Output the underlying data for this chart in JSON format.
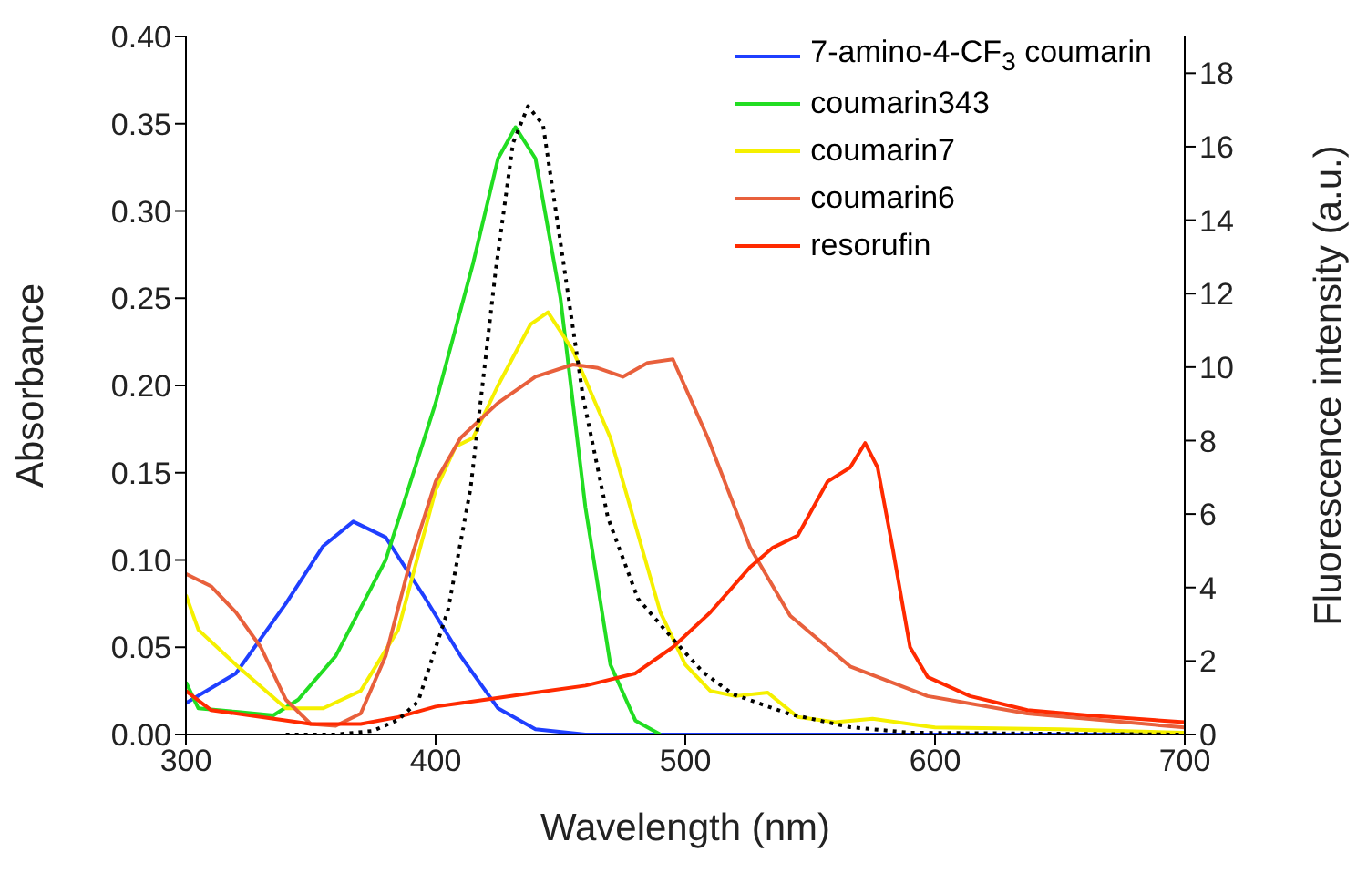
{
  "chart_data": {
    "type": "line",
    "xlabel": "Wavelength (nm)",
    "ylabel": "Absorbance",
    "y2label": "Fluorescence intensity (a.u.)",
    "xlim": [
      300,
      700
    ],
    "xticks": [
      300,
      400,
      500,
      600,
      700
    ],
    "ylim": [
      0,
      0.4
    ],
    "yticks": [
      {
        "value": 0,
        "label": "0.00"
      },
      {
        "value": 0.05,
        "label": "0.05"
      },
      {
        "value": 0.1,
        "label": "0.10"
      },
      {
        "value": 0.15,
        "label": "0.15"
      },
      {
        "value": 0.2,
        "label": "0.20"
      },
      {
        "value": 0.25,
        "label": "0.25"
      },
      {
        "value": 0.3,
        "label": "0.30"
      },
      {
        "value": 0.35,
        "label": "0.35"
      },
      {
        "value": 0.4,
        "label": "0.40"
      }
    ],
    "y2lim": [
      0,
      19
    ],
    "y2ticks": [
      0,
      2,
      4,
      6,
      8,
      10,
      12,
      14,
      16,
      18
    ],
    "grid": false,
    "legend": "top right",
    "marker": "none",
    "series": [
      {
        "name": "7-amino-4-CF$_{3}$ coumarin",
        "color": "#1f3fff",
        "line_style": "solid",
        "x": [
          300,
          320,
          340,
          355,
          367,
          380,
          395,
          410,
          425,
          440,
          460,
          700
        ],
        "values": [
          0.018,
          0.035,
          0.075,
          0.108,
          0.122,
          0.113,
          0.08,
          0.045,
          0.015,
          0.003,
          0,
          0
        ]
      },
      {
        "name": "coumarin343",
        "color": "#22dd22",
        "line_style": "solid",
        "x": [
          300,
          305,
          320,
          335,
          345,
          360,
          380,
          400,
          415,
          425,
          432,
          440,
          450,
          460,
          470,
          480,
          490
        ],
        "values": [
          0.03,
          0.015,
          0.013,
          0.011,
          0.02,
          0.045,
          0.1,
          0.19,
          0.27,
          0.33,
          0.348,
          0.33,
          0.25,
          0.13,
          0.04,
          0.008,
          0
        ]
      },
      {
        "name": "coumarin7",
        "color": "#f5f000",
        "line_style": "solid",
        "x": [
          300,
          305,
          320,
          340,
          355,
          370,
          385,
          400,
          408,
          415,
          425,
          438,
          445,
          455,
          470,
          480,
          490,
          500,
          510,
          520,
          533,
          545,
          560,
          575,
          600,
          650,
          700
        ],
        "values": [
          0.08,
          0.06,
          0.04,
          0.015,
          0.015,
          0.025,
          0.06,
          0.14,
          0.165,
          0.17,
          0.2,
          0.235,
          0.242,
          0.22,
          0.17,
          0.12,
          0.07,
          0.04,
          0.025,
          0.022,
          0.024,
          0.01,
          0.007,
          0.009,
          0.004,
          0.003,
          0.001
        ]
      },
      {
        "name": "coumarin6",
        "color": "#e8603c",
        "line_style": "solid",
        "x": [
          300,
          310,
          320,
          330,
          340,
          350,
          360,
          370,
          380,
          390,
          400,
          410,
          425,
          440,
          455,
          465,
          475,
          485,
          495,
          509,
          526,
          542,
          566,
          597,
          637,
          700
        ],
        "values": [
          0.092,
          0.085,
          0.07,
          0.05,
          0.02,
          0.006,
          0.005,
          0.012,
          0.045,
          0.1,
          0.145,
          0.17,
          0.19,
          0.205,
          0.212,
          0.21,
          0.205,
          0.213,
          0.215,
          0.17,
          0.107,
          0.068,
          0.039,
          0.022,
          0.012,
          0.004
        ]
      },
      {
        "name": "resorufin",
        "color": "#ff2a00",
        "line_style": "solid",
        "x": [
          300,
          310,
          330,
          350,
          370,
          385,
          400,
          420,
          440,
          460,
          480,
          495,
          510,
          526,
          535,
          545,
          557,
          566,
          572,
          577,
          583,
          590,
          597,
          614,
          637,
          661,
          700
        ],
        "values": [
          0.025,
          0.014,
          0.01,
          0.006,
          0.006,
          0.01,
          0.016,
          0.02,
          0.024,
          0.028,
          0.035,
          0.05,
          0.07,
          0.096,
          0.107,
          0.114,
          0.145,
          0.153,
          0.167,
          0.153,
          0.107,
          0.05,
          0.033,
          0.022,
          0.014,
          0.011,
          0.007
        ]
      },
      {
        "color": "#000000",
        "axis": "y2",
        "line_style": "dotted",
        "x": [
          340,
          360,
          375,
          385,
          393,
          405,
          414,
          424,
          431,
          437,
          443,
          450,
          459,
          469,
          481,
          495,
          507,
          519,
          542,
          566,
          590,
          700
        ],
        "values": [
          0,
          0,
          0.1,
          0.4,
          0.9,
          3.4,
          6.7,
          12.6,
          16.1,
          17.1,
          16.6,
          13.4,
          9.2,
          5.9,
          3.7,
          2.6,
          1.7,
          1.1,
          0.55,
          0.2,
          0.05,
          0
        ]
      }
    ]
  }
}
